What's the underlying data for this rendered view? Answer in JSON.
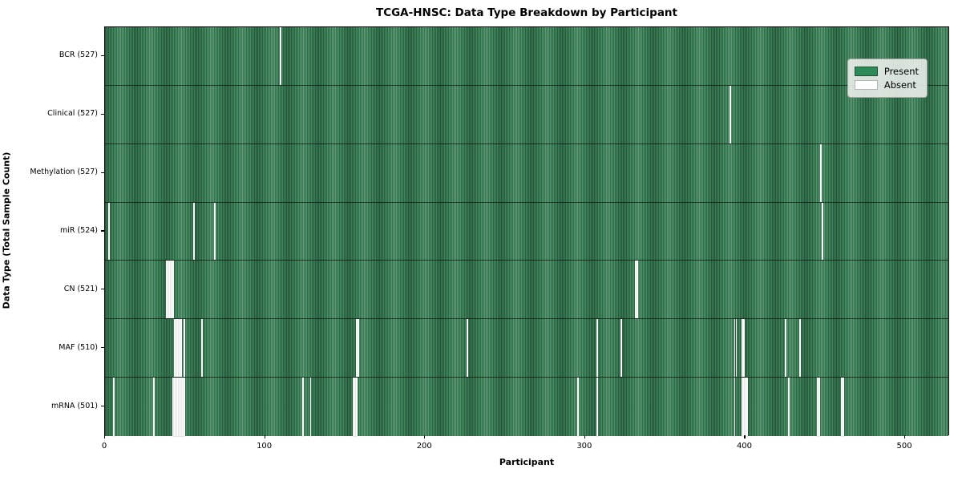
{
  "title": "TCGA-HNSC: Data Type Breakdown by Participant",
  "chart_data": {
    "type": "heatmap",
    "title": "TCGA-HNSC: Data Type Breakdown by Participant",
    "xlabel": "Participant",
    "ylabel": "Data Type (Total Sample Count)",
    "x_ticks": [
      0,
      100,
      200,
      300,
      400,
      500
    ],
    "x_range": [
      0,
      528
    ],
    "n_participants": 528,
    "grid": false,
    "legend_position": "upper right",
    "legend": [
      {
        "label": "Present",
        "color": "#2e8b57"
      },
      {
        "label": "Absent",
        "color": "#ffffff"
      }
    ],
    "rows": [
      {
        "label": "BCR (527)",
        "data_type": "BCR",
        "present_count": 527,
        "absent_participants": [
          109
        ]
      },
      {
        "label": "Clinical (527)",
        "data_type": "Clinical",
        "present_count": 527,
        "absent_participants": [
          390
        ]
      },
      {
        "label": "Methylation (527)",
        "data_type": "Methylation",
        "present_count": 527,
        "absent_participants": [
          447
        ]
      },
      {
        "label": "miR (524)",
        "data_type": "miR",
        "present_count": 524,
        "absent_participants": [
          2,
          55,
          68,
          448
        ]
      },
      {
        "label": "CN (521)",
        "data_type": "CN",
        "present_count": 521,
        "absent_participants": [
          38,
          39,
          40,
          41,
          42,
          331,
          332
        ]
      },
      {
        "label": "MAF (510)",
        "data_type": "MAF",
        "present_count": 510,
        "absent_participants": [
          43,
          44,
          45,
          46,
          47,
          49,
          60,
          157,
          158,
          226,
          307,
          322,
          393,
          394,
          398,
          399,
          425,
          434
        ]
      },
      {
        "label": "mRNA (501)",
        "data_type": "mRNA",
        "present_count": 501,
        "absent_participants": [
          5,
          30,
          42,
          43,
          44,
          45,
          46,
          47,
          48,
          49,
          123,
          128,
          155,
          156,
          157,
          295,
          307,
          393,
          398,
          399,
          400,
          401,
          427,
          445,
          446,
          460,
          461
        ]
      }
    ]
  },
  "colors": {
    "present": "#2e8b57",
    "absent": "#ffffff",
    "plot_border": "#000000",
    "legend_bg": "#eaeeea",
    "text": "#000000"
  }
}
